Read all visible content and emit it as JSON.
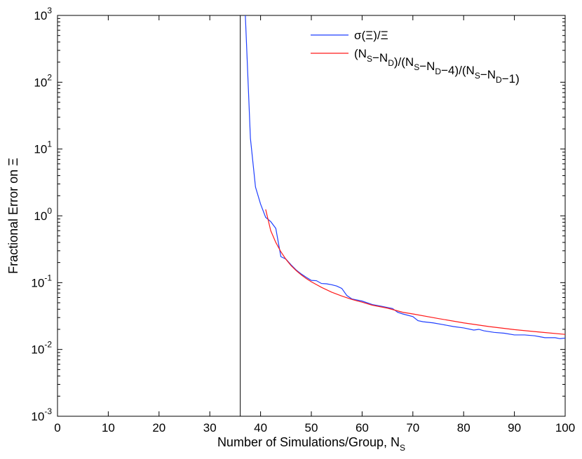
{
  "chart_data": {
    "type": "line",
    "xlabel": "Number of Simulations/Group, N",
    "xlabel_subscript": "S",
    "ylabel": "Fractional Error on Ξ",
    "xlim": [
      0,
      100
    ],
    "ylim": [
      0.001,
      1000
    ],
    "y_scale": "log",
    "x_ticks": [
      "0",
      "10",
      "20",
      "30",
      "40",
      "50",
      "60",
      "70",
      "80",
      "90",
      "100"
    ],
    "y_ticks": [
      {
        "value": 0.001,
        "base": "10",
        "exp": "-3"
      },
      {
        "value": 0.01,
        "base": "10",
        "exp": "-2"
      },
      {
        "value": 0.1,
        "base": "10",
        "exp": "-1"
      },
      {
        "value": 1,
        "base": "10",
        "exp": "0"
      },
      {
        "value": 10,
        "base": "10",
        "exp": "1"
      },
      {
        "value": 100,
        "base": "10",
        "exp": "2"
      },
      {
        "value": 1000,
        "base": "10",
        "exp": "3"
      }
    ],
    "grid": false,
    "legend_position": "top-right",
    "vertical_line": {
      "x": 36,
      "color": "#000000"
    },
    "series": [
      {
        "name": "σ(Ξ)/Ξ",
        "color": "#1f3fff",
        "x": [
          37,
          38,
          39,
          40,
          41,
          42,
          43,
          44,
          45,
          46,
          47,
          48,
          49,
          50,
          51,
          52,
          53,
          54,
          55,
          56,
          57,
          58,
          59,
          60,
          62,
          64,
          66,
          67,
          68,
          70,
          71,
          72,
          74,
          76,
          78,
          80,
          82,
          83,
          84,
          86,
          88,
          90,
          92,
          94,
          95,
          96,
          98,
          99,
          100
        ],
        "y": [
          1000,
          14.5,
          2.7,
          1.5,
          0.95,
          0.82,
          0.65,
          0.245,
          0.225,
          0.185,
          0.155,
          0.135,
          0.12,
          0.108,
          0.107,
          0.097,
          0.096,
          0.093,
          0.089,
          0.082,
          0.064,
          0.057,
          0.055,
          0.053,
          0.047,
          0.044,
          0.041,
          0.036,
          0.034,
          0.031,
          0.027,
          0.026,
          0.025,
          0.0235,
          0.022,
          0.021,
          0.0195,
          0.02,
          0.019,
          0.018,
          0.0175,
          0.0165,
          0.0165,
          0.016,
          0.0155,
          0.015,
          0.015,
          0.0145,
          0.0148
        ]
      },
      {
        "name": "(N_S−N_D)/(N_S−N_D−4)/(N_S−N_D−1)",
        "color": "#ff1a1a",
        "x": [
          41,
          42,
          43,
          44,
          45,
          46,
          47,
          48,
          49,
          50,
          52,
          54,
          56,
          58,
          60,
          62,
          65,
          68,
          70,
          75,
          80,
          85,
          90,
          95,
          100
        ],
        "y": [
          1.25,
          0.6,
          0.4,
          0.29,
          0.223,
          0.18,
          0.152,
          0.131,
          0.115,
          0.103,
          0.085,
          0.072,
          0.063,
          0.056,
          0.051,
          0.046,
          0.0415,
          0.036,
          0.034,
          0.029,
          0.025,
          0.022,
          0.0198,
          0.0182,
          0.0168
        ]
      }
    ],
    "legend": [
      {
        "main": "σ(Ξ)/Ξ"
      },
      {
        "parts": [
          {
            "t": "(N",
            "sub": ""
          },
          {
            "t": "",
            "sub": "S"
          },
          {
            "t": "−N",
            "sub": ""
          },
          {
            "t": "",
            "sub": "D"
          },
          {
            "t": ")/(N",
            "sub": ""
          },
          {
            "t": "",
            "sub": "S"
          },
          {
            "t": "−N",
            "sub": ""
          },
          {
            "t": "",
            "sub": "D"
          },
          {
            "t": "−4)/(N",
            "sub": ""
          },
          {
            "t": "",
            "sub": "S"
          },
          {
            "t": "−N",
            "sub": ""
          },
          {
            "t": "",
            "sub": "D"
          },
          {
            "t": "−1)",
            "sub": ""
          }
        ]
      }
    ]
  }
}
